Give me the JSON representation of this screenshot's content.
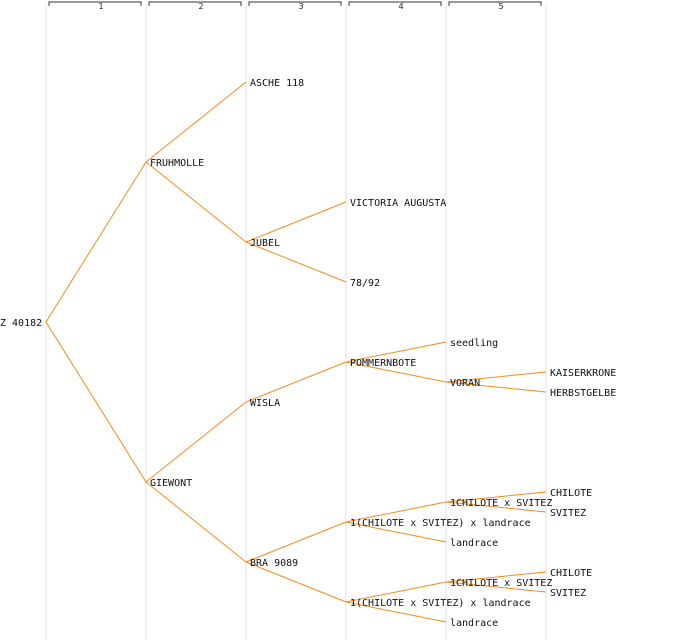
{
  "generations": [
    "1",
    "2",
    "3",
    "4",
    "5"
  ],
  "colors": {
    "edge": "#f28c1c",
    "grid": "#e3e3e3",
    "text": "#111111"
  },
  "tree": {
    "label": "Z 40182",
    "children": [
      {
        "label": "FRUHMOLLE",
        "children": [
          {
            "label": "ASCHE 118"
          },
          {
            "label": "JUBEL",
            "children": [
              {
                "label": "VICTORIA AUGUSTA"
              },
              {
                "label": "78/92"
              }
            ]
          }
        ]
      },
      {
        "label": "GIEWONT",
        "children": [
          {
            "label": "WISLA",
            "children": [
              {
                "label": "POMMERNBOTE",
                "children": [
                  {
                    "label": "seedling"
                  },
                  {
                    "label": "VORAN",
                    "children": [
                      {
                        "label": "KAISERKRONE"
                      },
                      {
                        "label": "HERBSTGELBE"
                      }
                    ]
                  }
                ]
              }
            ]
          },
          {
            "label": "BRA 9089",
            "children": [
              {
                "label": "1(CHILOTE x SVITEZ) x landrace",
                "children": [
                  {
                    "label": "1CHILOTE x SVITEZ",
                    "children": [
                      {
                        "label": "CHILOTE"
                      },
                      {
                        "label": "SVITEZ"
                      }
                    ]
                  },
                  {
                    "label": "landrace"
                  }
                ]
              },
              {
                "label": "1(CHILOTE x SVITEZ) x landrace",
                "children": [
                  {
                    "label": "1CHILOTE x SVITEZ",
                    "children": [
                      {
                        "label": "CHILOTE"
                      },
                      {
                        "label": "SVITEZ"
                      }
                    ]
                  },
                  {
                    "label": "landrace"
                  }
                ]
              }
            ]
          }
        ]
      }
    ]
  }
}
